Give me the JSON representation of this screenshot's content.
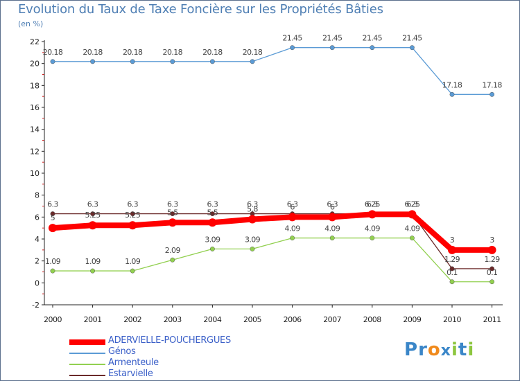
{
  "title": "Evolution du Taux de Taxe Foncière sur les Propriétés Bâties",
  "subtitle": "(en %)",
  "logo": {
    "letters": [
      "P",
      "r",
      "o",
      "x",
      "i",
      "t",
      "i"
    ],
    "colors": [
      "#3a86c8",
      "#3a86c8",
      "#f08a1c",
      "#3a86c8",
      "#8dc63f",
      "#3a86c8",
      "#8dc63f"
    ]
  },
  "chart_data": {
    "type": "line",
    "title": "Evolution du Taux de Taxe Foncière sur les Propriétés Bâties",
    "ylabel": "(en %)",
    "categories": [
      "2000",
      "2001",
      "2002",
      "2003",
      "2004",
      "2005",
      "2006",
      "2007",
      "2008",
      "2009",
      "2010",
      "2011"
    ],
    "ylim": [
      -2,
      22
    ],
    "yticks": [
      "-2",
      "0",
      "2",
      "4",
      "6",
      "8",
      "10",
      "12",
      "14",
      "16",
      "18",
      "20",
      "22"
    ],
    "grid": false,
    "legend_position": "bottom-left",
    "series": [
      {
        "name": "ADERVIELLE-POUCHERGUES",
        "color": "#ff0000",
        "values": [
          5,
          5.25,
          5.25,
          5.5,
          5.5,
          5.8,
          6,
          6,
          6.25,
          6.25,
          3,
          3
        ],
        "labels": [
          "5",
          "5.25",
          "5.25",
          "5.5",
          "5.5",
          "5.8",
          "6",
          "6",
          "6.25",
          "6.25",
          "3",
          "3"
        ],
        "bold": true
      },
      {
        "name": "Génos",
        "color": "#5b9bd5",
        "values": [
          20.18,
          20.18,
          20.18,
          20.18,
          20.18,
          20.18,
          21.45,
          21.45,
          21.45,
          21.45,
          17.18,
          17.18
        ],
        "labels": [
          "20.18",
          "20.18",
          "20.18",
          "20.18",
          "20.18",
          "20.18",
          "21.45",
          "21.45",
          "21.45",
          "21.45",
          "17.18",
          "17.18"
        ]
      },
      {
        "name": "Armenteule",
        "color": "#92d050",
        "values": [
          1.09,
          1.09,
          1.09,
          2.09,
          3.09,
          3.09,
          4.09,
          4.09,
          4.09,
          4.09,
          0.1,
          0.1
        ],
        "labels": [
          "1.09",
          "1.09",
          "1.09",
          "2.09",
          "3.09",
          "3.09",
          "4.09",
          "4.09",
          "4.09",
          "4.09",
          "0.1",
          "0.1"
        ]
      },
      {
        "name": "Estarvielle",
        "color": "#6b2a2a",
        "values": [
          6.3,
          6.3,
          6.3,
          6.3,
          6.3,
          6.3,
          6.3,
          6.3,
          6.3,
          6.3,
          1.29,
          1.29
        ],
        "labels": [
          "6.3",
          "6.3",
          "6.3",
          "6.3",
          "6.3",
          "6.3",
          "6.3",
          "6.3",
          "6.3",
          "6.3",
          "1.29",
          "1.29"
        ]
      }
    ]
  }
}
